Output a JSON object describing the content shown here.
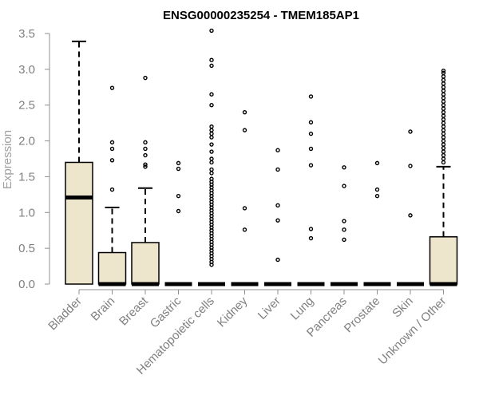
{
  "chart_data": {
    "type": "boxplot",
    "title": "ENSG00000235254 - TMEM185AP1",
    "xlabel": "",
    "ylabel": "Expression",
    "ylim": [
      0,
      3.5
    ],
    "yticks": [
      "0.0",
      "0.5",
      "1.0",
      "1.5",
      "2.0",
      "2.5",
      "3.0",
      "3.5"
    ],
    "grid": false,
    "box_fill": "#ede6cc",
    "categories": [
      "Bladder",
      "Brain",
      "Breast",
      "Gastric",
      "Hematopoietic cells",
      "Kidney",
      "Liver",
      "Lung",
      "Pancreas",
      "Prostate",
      "Skin",
      "Unknown / Other"
    ],
    "boxes": [
      {
        "q1": 0.0,
        "median": 1.21,
        "q3": 1.7,
        "whisker_low": 0.0,
        "whisker_high": 3.39,
        "outliers": []
      },
      {
        "q1": 0.0,
        "median": 0.0,
        "q3": 0.44,
        "whisker_low": 0.0,
        "whisker_high": 1.07,
        "outliers": [
          1.32,
          1.73,
          1.89,
          1.98,
          2.74
        ]
      },
      {
        "q1": 0.0,
        "median": 0.0,
        "q3": 0.58,
        "whisker_low": 0.0,
        "whisker_high": 1.34,
        "outliers": [
          1.64,
          1.67,
          1.8,
          1.89,
          1.98,
          2.88
        ]
      },
      {
        "q1": 0.0,
        "median": 0.0,
        "q3": 0.0,
        "whisker_low": 0.0,
        "whisker_high": 0.0,
        "outliers": [
          1.02,
          1.23,
          1.61,
          1.69
        ]
      },
      {
        "q1": 0.0,
        "median": 0.0,
        "q3": 0.0,
        "whisker_low": 0.0,
        "whisker_high": 0.0,
        "outliers": [
          0.27,
          0.31,
          0.35,
          0.39,
          0.43,
          0.47,
          0.51,
          0.55,
          0.59,
          0.63,
          0.67,
          0.71,
          0.75,
          0.79,
          0.83,
          0.87,
          0.91,
          0.95,
          0.99,
          1.03,
          1.07,
          1.11,
          1.15,
          1.19,
          1.23,
          1.27,
          1.31,
          1.35,
          1.39,
          1.43,
          1.47,
          1.55,
          1.6,
          1.7,
          1.75,
          1.85,
          1.95,
          2.05,
          2.1,
          2.15,
          2.2,
          2.5,
          2.65,
          3.05,
          3.13,
          3.54
        ]
      },
      {
        "q1": 0.0,
        "median": 0.0,
        "q3": 0.0,
        "whisker_low": 0.0,
        "whisker_high": 0.0,
        "outliers": [
          0.76,
          1.06,
          2.15,
          2.4
        ]
      },
      {
        "q1": 0.0,
        "median": 0.0,
        "q3": 0.0,
        "whisker_low": 0.0,
        "whisker_high": 0.0,
        "outliers": [
          0.34,
          0.89,
          1.1,
          1.6,
          1.87
        ]
      },
      {
        "q1": 0.0,
        "median": 0.0,
        "q3": 0.0,
        "whisker_low": 0.0,
        "whisker_high": 0.0,
        "outliers": [
          0.64,
          0.77,
          1.66,
          1.89,
          2.1,
          2.26,
          2.62
        ]
      },
      {
        "q1": 0.0,
        "median": 0.0,
        "q3": 0.0,
        "whisker_low": 0.0,
        "whisker_high": 0.0,
        "outliers": [
          0.62,
          0.76,
          0.88,
          1.37,
          1.63
        ]
      },
      {
        "q1": 0.0,
        "median": 0.0,
        "q3": 0.0,
        "whisker_low": 0.0,
        "whisker_high": 0.0,
        "outliers": [
          1.23,
          1.32,
          1.69
        ]
      },
      {
        "q1": 0.0,
        "median": 0.0,
        "q3": 0.0,
        "whisker_low": 0.0,
        "whisker_high": 0.0,
        "outliers": [
          0.96,
          1.65,
          2.13
        ]
      },
      {
        "q1": 0.0,
        "median": 0.0,
        "q3": 0.66,
        "whisker_low": 0.0,
        "whisker_high": 1.64,
        "outliers": [
          1.7,
          1.75,
          1.8,
          1.85,
          1.9,
          1.95,
          2.0,
          2.05,
          2.1,
          2.15,
          2.2,
          2.25,
          2.3,
          2.35,
          2.4,
          2.45,
          2.5,
          2.55,
          2.6,
          2.65,
          2.7,
          2.75,
          2.8,
          2.85,
          2.9,
          2.95,
          2.98
        ]
      }
    ]
  }
}
